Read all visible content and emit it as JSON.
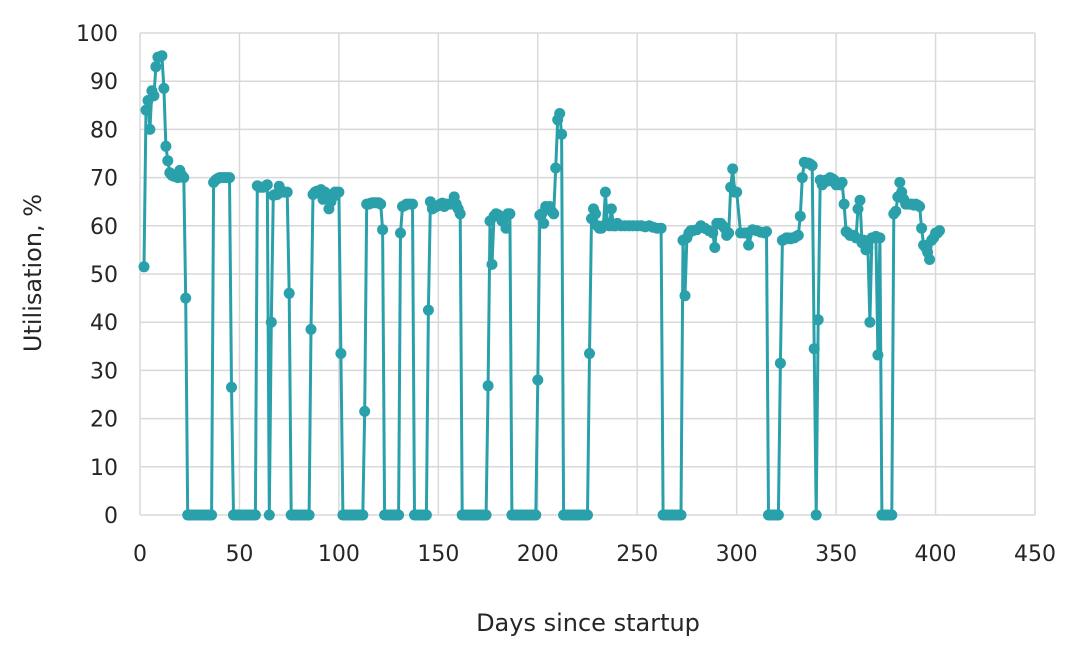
{
  "chart_data": {
    "type": "line",
    "xlabel": "Days since startup",
    "ylabel": "Utilisation, %",
    "xlim": [
      0,
      450
    ],
    "ylim": [
      0,
      100
    ],
    "x_ticks": [
      0,
      50,
      100,
      150,
      200,
      250,
      300,
      350,
      400,
      450
    ],
    "y_ticks": [
      0,
      10,
      20,
      30,
      40,
      50,
      60,
      70,
      80,
      90,
      100
    ],
    "grid": true,
    "legend": "none",
    "series": [
      {
        "color": "#2aa0aa",
        "x": [
          2,
          3,
          4,
          5,
          6,
          7,
          8,
          9,
          10,
          11,
          12,
          13,
          14,
          15,
          16,
          17,
          18,
          19,
          20,
          21,
          22,
          23,
          24,
          25,
          26,
          27,
          28,
          29,
          30,
          31,
          32,
          33,
          34,
          35,
          36,
          37,
          38,
          39,
          40,
          41,
          42,
          43,
          44,
          45,
          46,
          47,
          48,
          49,
          50,
          51,
          52,
          53,
          54,
          55,
          56,
          57,
          58,
          59,
          60,
          61,
          62,
          63,
          64,
          65,
          66,
          67,
          68,
          69,
          70,
          71,
          72,
          73,
          74,
          75,
          76,
          77,
          78,
          79,
          80,
          81,
          82,
          83,
          84,
          85,
          86,
          87,
          88,
          89,
          90,
          91,
          92,
          93,
          94,
          95,
          96,
          97,
          98,
          99,
          100,
          101,
          102,
          103,
          104,
          105,
          106,
          107,
          108,
          109,
          110,
          111,
          112,
          113,
          114,
          115,
          116,
          117,
          118,
          119,
          120,
          121,
          122,
          123,
          124,
          125,
          126,
          127,
          128,
          129,
          130,
          131,
          132,
          133,
          134,
          135,
          136,
          137,
          138,
          139,
          140,
          141,
          142,
          143,
          144,
          145,
          146,
          147,
          148,
          149,
          150,
          151,
          152,
          153,
          154,
          155,
          156,
          157,
          158,
          159,
          160,
          161,
          162,
          163,
          164,
          165,
          166,
          167,
          168,
          169,
          170,
          171,
          172,
          173,
          174,
          175,
          176,
          177,
          178,
          179,
          180,
          181,
          182,
          183,
          184,
          185,
          186,
          187,
          188,
          189,
          190,
          191,
          192,
          193,
          194,
          195,
          196,
          197,
          198,
          199,
          200,
          201,
          202,
          203,
          204,
          205,
          206,
          207,
          208,
          209,
          210,
          211,
          212,
          213,
          214,
          215,
          216,
          217,
          218,
          219,
          220,
          221,
          222,
          223,
          224,
          225,
          226,
          227,
          228,
          229,
          230,
          231,
          232,
          233,
          234,
          235,
          236,
          237,
          238,
          239,
          240,
          242,
          244,
          246,
          248,
          250,
          252,
          254,
          256,
          258,
          260,
          262,
          263,
          264,
          265,
          266,
          267,
          268,
          269,
          270,
          271,
          272,
          273,
          274,
          275,
          276,
          277,
          278,
          280,
          282,
          284,
          286,
          288,
          289,
          290,
          291,
          292,
          293,
          294,
          295,
          296,
          297,
          298,
          299,
          300,
          302,
          304,
          305,
          306,
          308,
          310,
          312,
          314,
          315,
          316,
          317,
          318,
          319,
          320,
          321,
          322,
          323,
          324,
          325,
          326,
          327,
          328,
          329,
          330,
          331,
          332,
          333,
          334,
          335,
          336,
          337,
          338,
          339,
          340,
          341,
          342,
          343,
          344,
          345,
          346,
          347,
          348,
          349,
          350,
          351,
          352,
          353,
          354,
          355,
          356,
          357,
          358,
          359,
          360,
          361,
          362,
          363,
          364,
          365,
          366,
          367,
          368,
          369,
          370,
          371,
          372,
          373,
          374,
          375,
          376,
          377,
          378,
          379,
          380,
          381,
          382,
          383,
          384,
          385,
          386,
          387,
          388,
          389,
          390,
          391,
          392,
          393,
          394,
          395,
          396,
          397,
          398,
          399,
          400,
          401,
          402
        ],
        "y": [
          51.5,
          84,
          86,
          80,
          88,
          87,
          93,
          95,
          95,
          95.3,
          88.5,
          76.5,
          73.5,
          71,
          70.5,
          70.3,
          70.5,
          70,
          71.5,
          70.5,
          70,
          45,
          0,
          0,
          0,
          0,
          0,
          0,
          0,
          0,
          0,
          0,
          0,
          0,
          0,
          69,
          69.5,
          69.8,
          70,
          70,
          70,
          70,
          70,
          70,
          26.5,
          0,
          0,
          0,
          0,
          0,
          0,
          0,
          0,
          0,
          0,
          0,
          0,
          68.3,
          68,
          68,
          68,
          68.2,
          68.5,
          0,
          40,
          66.3,
          66.5,
          66.5,
          68.2,
          67,
          67,
          67,
          67,
          46,
          0,
          0,
          0,
          0,
          0,
          0,
          0,
          0,
          0,
          0,
          38.5,
          66.5,
          67,
          67.2,
          66.8,
          67.5,
          65.5,
          67,
          66.5,
          63.5,
          65,
          66,
          67,
          67,
          67,
          33.5,
          0,
          0,
          0,
          0,
          0,
          0,
          0,
          0,
          0,
          0,
          0,
          21.5,
          64.5,
          64.5,
          64.7,
          64.8,
          64.8,
          64.8,
          64.8,
          64.5,
          59.2,
          0,
          0,
          0,
          0,
          0,
          0,
          0,
          0,
          58.5,
          64,
          64.2,
          64.5,
          64.5,
          64.5,
          64.5,
          0,
          0,
          0,
          0,
          0,
          0,
          0,
          42.5,
          65,
          63.5,
          63.8,
          64,
          64.2,
          64.5,
          64.7,
          64,
          64.5,
          64.5,
          64.5,
          64.5,
          66,
          64.5,
          63.5,
          62.5,
          0,
          0,
          0,
          0,
          0,
          0,
          0,
          0,
          0,
          0,
          0,
          0,
          0,
          26.8,
          61,
          52,
          62,
          62.5,
          62.3,
          62,
          61,
          61.5,
          59.5,
          62.5,
          62.5,
          0,
          0,
          0,
          0,
          0,
          0,
          0,
          0,
          0,
          0,
          0,
          0,
          0,
          28,
          62.2,
          62.5,
          60.5,
          64,
          63.5,
          64,
          63,
          62.5,
          72,
          82,
          83.3,
          79,
          0,
          0,
          0,
          0,
          0,
          0,
          0,
          0,
          0,
          0,
          0,
          0,
          0,
          33.5,
          61.5,
          63.5,
          62.5,
          60,
          59.5,
          59.5,
          60,
          67,
          60.5,
          60,
          63.5,
          60,
          60,
          60.5,
          60,
          60,
          60,
          60,
          60,
          60,
          59.8,
          60,
          59.7,
          59.5,
          59.5,
          0,
          0,
          0,
          0,
          0,
          0,
          0,
          0,
          0,
          0,
          57,
          45.5,
          57.5,
          58.5,
          59,
          59,
          59.2,
          60,
          59.5,
          59,
          58.5,
          55.5,
          60.5,
          60.5,
          60.5,
          60,
          59.5,
          58,
          58.5,
          68,
          71.8,
          67,
          67,
          58.5,
          58.5,
          58.5,
          56,
          59.2,
          59,
          58.7,
          58.5,
          58.8,
          0,
          0,
          0,
          0,
          0,
          0,
          31.5,
          57,
          57.2,
          57.5,
          57.5,
          57.3,
          57.5,
          57.5,
          57.8,
          58,
          62,
          70,
          73.2,
          73,
          73,
          72.8,
          72.5,
          34.5,
          0,
          40.5,
          69.5,
          68.5,
          69,
          69.5,
          69.3,
          70,
          69.8,
          69.5,
          68.5,
          68.8,
          68.5,
          69,
          64.5,
          58.8,
          58.5,
          58,
          58,
          58,
          57.5,
          63.5,
          65.3,
          56.5,
          57,
          55,
          55.5,
          40,
          57.5,
          57.5,
          57.8,
          33.2,
          57.5,
          0,
          0,
          0,
          0,
          0,
          0,
          62.5,
          63,
          66,
          69,
          67,
          65.5,
          64.5,
          64.5,
          64.5,
          64.5,
          64.3,
          64.5,
          64.3,
          64,
          59.5,
          56,
          55.5,
          54.5,
          53,
          57,
          57.5,
          58.5,
          58.5,
          59
        ]
      }
    ]
  }
}
